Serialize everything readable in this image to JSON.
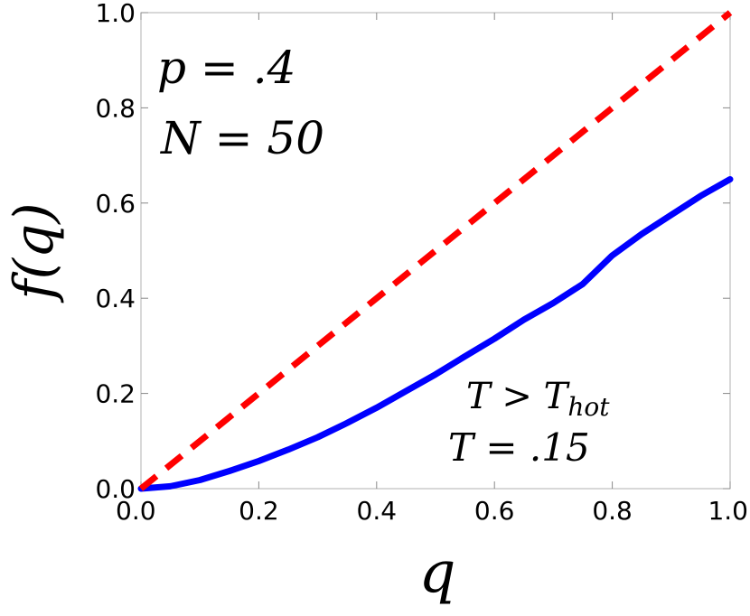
{
  "chart_data": {
    "type": "line",
    "xlabel": "q",
    "ylabel": "f(q)",
    "xlim": [
      0,
      1
    ],
    "ylim": [
      0,
      1
    ],
    "x_ticks": [
      "0.0",
      "0.2",
      "0.4",
      "0.6",
      "0.8",
      "1.0"
    ],
    "y_ticks": [
      "0.0",
      "0.2",
      "0.4",
      "0.6",
      "0.8",
      "1.0"
    ],
    "grid": false,
    "series": [
      {
        "color": "#0000ff",
        "style": "solid",
        "x": [
          0,
          0.05,
          0.1,
          0.15,
          0.2,
          0.25,
          0.3,
          0.35,
          0.4,
          0.45,
          0.5,
          0.55,
          0.6,
          0.65,
          0.7,
          0.75,
          0.8,
          0.85,
          0.9,
          0.95,
          1.0
        ],
        "y": [
          0,
          0.005,
          0.018,
          0.037,
          0.058,
          0.082,
          0.108,
          0.138,
          0.17,
          0.205,
          0.24,
          0.278,
          0.315,
          0.355,
          0.39,
          0.43,
          0.49,
          0.535,
          0.575,
          0.615,
          0.65
        ]
      },
      {
        "color": "#ff0000",
        "style": "dashed",
        "x": [
          0,
          1
        ],
        "y": [
          0,
          1
        ]
      }
    ],
    "annotations": {
      "p_label": "p = .4",
      "n_label": "N = 50",
      "thot_label": "T > T",
      "thot_sub": "hot",
      "t_label": "T = .15"
    }
  }
}
